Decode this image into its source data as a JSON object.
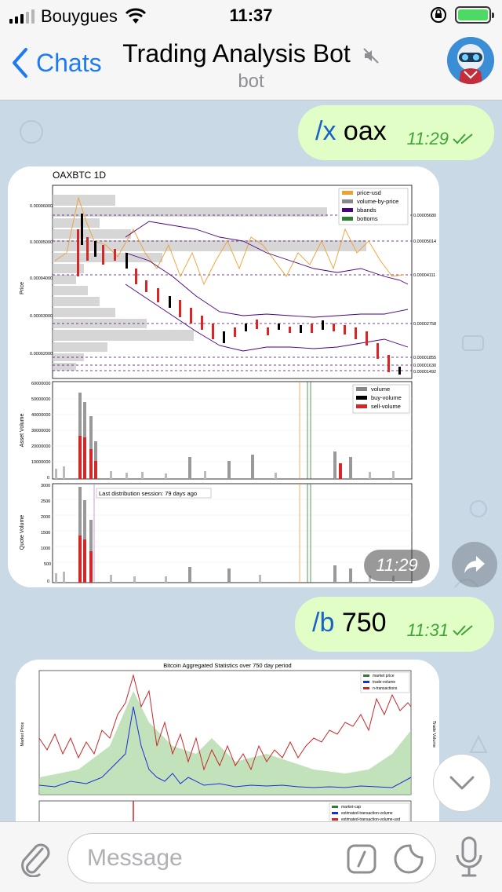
{
  "status_bar": {
    "carrier": "Bouygues",
    "time": "11:37"
  },
  "nav": {
    "back_label": "Chats",
    "title": "Trading Analysis Bot",
    "subtitle": "bot"
  },
  "messages": [
    {
      "type": "outgoing",
      "command": "/x",
      "text": "oax",
      "time": "11:29"
    },
    {
      "type": "incoming-image",
      "chart_title": "OAXBTC 1D",
      "time": "11:29",
      "legend_price": [
        "price-usd",
        "volume-by-price",
        "bbands",
        "bottoms"
      ],
      "legend_asset": [
        "volume",
        "buy-volume",
        "sell-volume"
      ],
      "annotation": "Last distribution session: 79 days ago",
      "ylabels": [
        "Price",
        "Asset Volume",
        "Quote Volume"
      ],
      "right_prices": [
        "0.00005680",
        "0.00005014",
        "0.00004111",
        "0.00002758",
        "0.00001855",
        "0.00001630",
        "0.00001492"
      ],
      "price_ticks": [
        "0.00006000",
        "0.00005000",
        "0.00004000",
        "0.00003000",
        "0.00002000"
      ],
      "asset_ticks": [
        "60000000",
        "50000000",
        "40000000",
        "30000000",
        "20000000",
        "10000000",
        "0"
      ],
      "quote_ticks": [
        "3000",
        "2500",
        "2000",
        "1500",
        "1000",
        "500",
        "0"
      ]
    },
    {
      "type": "outgoing",
      "command": "/b",
      "text": "750",
      "time": "11:31"
    },
    {
      "type": "incoming-image",
      "chart_title": "Bitcoin Aggregated Statistics over 750 day period",
      "legend_top": [
        "market price",
        "trade-volume",
        "n-transactions"
      ],
      "legend_bottom": [
        "market-cap",
        "estimated-transaction-volume",
        "estimated-transaction-volume-usd"
      ],
      "ylabel_left": "Market Price",
      "ylabel_right": "Trade Volume"
    }
  ],
  "input": {
    "placeholder": "Message"
  },
  "colors": {
    "accent": "#1e7bf0",
    "outgoing_bubble": "#e1fec6",
    "read_check": "#3fa33a"
  }
}
